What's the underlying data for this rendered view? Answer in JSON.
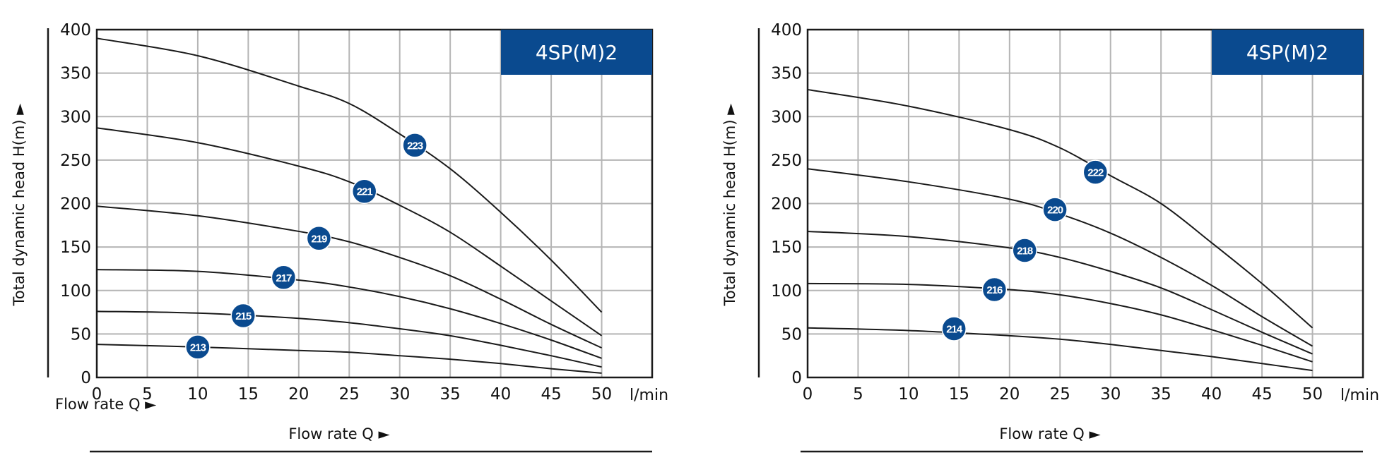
{
  "chart_data": [
    {
      "type": "line",
      "title": "4SP(M)2",
      "xlabel": "Flow rate Q ►",
      "x_extra_label": "Flow rate Q ►",
      "ylabel": "Total dynamic head H(m) ►",
      "x_unit": "l/min",
      "xlim": [
        0,
        55
      ],
      "ylim": [
        0,
        400
      ],
      "x_ticks": [
        "0",
        "5",
        "10",
        "15",
        "20",
        "25",
        "30",
        "35",
        "40",
        "45",
        "50"
      ],
      "y_ticks": [
        "0",
        "50",
        "100",
        "150",
        "200",
        "250",
        "300",
        "350",
        "400"
      ],
      "grid": true,
      "colors": {
        "curve": "#1a1a1a",
        "grid": "#b5b5b5",
        "accent": "#0a4a8f"
      },
      "series": [
        {
          "name": "223",
          "x": [
            0,
            10,
            20,
            25,
            30,
            35,
            40,
            45,
            50
          ],
          "y": [
            390,
            370,
            335,
            315,
            280,
            240,
            190,
            135,
            75
          ],
          "label_x": 31.5,
          "label_y": 267
        },
        {
          "name": "221",
          "x": [
            0,
            10,
            20,
            25,
            30,
            35,
            40,
            45,
            50
          ],
          "y": [
            287,
            270,
            243,
            225,
            198,
            167,
            128,
            88,
            48
          ],
          "label_x": 26.5,
          "label_y": 214
        },
        {
          "name": "219",
          "x": [
            0,
            10,
            20,
            25,
            30,
            35,
            40,
            45,
            50
          ],
          "y": [
            197,
            186,
            168,
            156,
            138,
            117,
            90,
            61,
            34
          ],
          "label_x": 22,
          "label_y": 160
        },
        {
          "name": "217",
          "x": [
            0,
            10,
            20,
            25,
            30,
            35,
            40,
            45,
            50
          ],
          "y": [
            124,
            122,
            112,
            104,
            93,
            79,
            62,
            43,
            22
          ],
          "label_x": 18.5,
          "label_y": 115
        },
        {
          "name": "215",
          "x": [
            0,
            10,
            20,
            25,
            30,
            35,
            40,
            45,
            50
          ],
          "y": [
            76,
            74,
            68,
            63,
            56,
            48,
            37,
            25,
            12
          ],
          "label_x": 14.5,
          "label_y": 71
        },
        {
          "name": "213",
          "x": [
            0,
            10,
            20,
            25,
            30,
            35,
            40,
            45,
            50
          ],
          "y": [
            38,
            35,
            31,
            29,
            25,
            21,
            16,
            10,
            5
          ],
          "label_x": 10,
          "label_y": 35
        }
      ]
    },
    {
      "type": "line",
      "title": "4SP(M)2",
      "xlabel": "Flow rate Q ►",
      "ylabel": "Total dynamic head H(m) ►",
      "x_unit": "l/min",
      "xlim": [
        0,
        55
      ],
      "ylim": [
        0,
        400
      ],
      "x_ticks": [
        "0",
        "5",
        "10",
        "15",
        "20",
        "25",
        "30",
        "35",
        "40",
        "45",
        "50"
      ],
      "y_ticks": [
        "0",
        "50",
        "100",
        "150",
        "200",
        "250",
        "300",
        "350",
        "400"
      ],
      "grid": true,
      "colors": {
        "curve": "#1a1a1a",
        "grid": "#b5b5b5",
        "accent": "#0a4a8f"
      },
      "series": [
        {
          "name": "222",
          "x": [
            0,
            10,
            20,
            25,
            30,
            35,
            40,
            45,
            50
          ],
          "y": [
            331,
            312,
            285,
            264,
            232,
            200,
            155,
            108,
            57
          ],
          "label_x": 28.5,
          "label_y": 236
        },
        {
          "name": "220",
          "x": [
            0,
            10,
            20,
            25,
            30,
            35,
            40,
            45,
            50
          ],
          "y": [
            240,
            225,
            205,
            188,
            166,
            138,
            106,
            70,
            36
          ],
          "label_x": 24.5,
          "label_y": 193
        },
        {
          "name": "218",
          "x": [
            0,
            10,
            20,
            25,
            30,
            35,
            40,
            45,
            50
          ],
          "y": [
            168,
            162,
            149,
            138,
            122,
            103,
            78,
            52,
            27
          ],
          "label_x": 21.5,
          "label_y": 146
        },
        {
          "name": "216",
          "x": [
            0,
            10,
            20,
            25,
            30,
            35,
            40,
            45,
            50
          ],
          "y": [
            108,
            107,
            101,
            95,
            85,
            72,
            55,
            37,
            18
          ],
          "label_x": 18.5,
          "label_y": 101
        },
        {
          "name": "214",
          "x": [
            0,
            10,
            20,
            25,
            30,
            35,
            40,
            45,
            50
          ],
          "y": [
            57,
            54,
            48,
            44,
            38,
            31,
            24,
            16,
            8
          ],
          "label_x": 14.5,
          "label_y": 56
        }
      ]
    }
  ]
}
